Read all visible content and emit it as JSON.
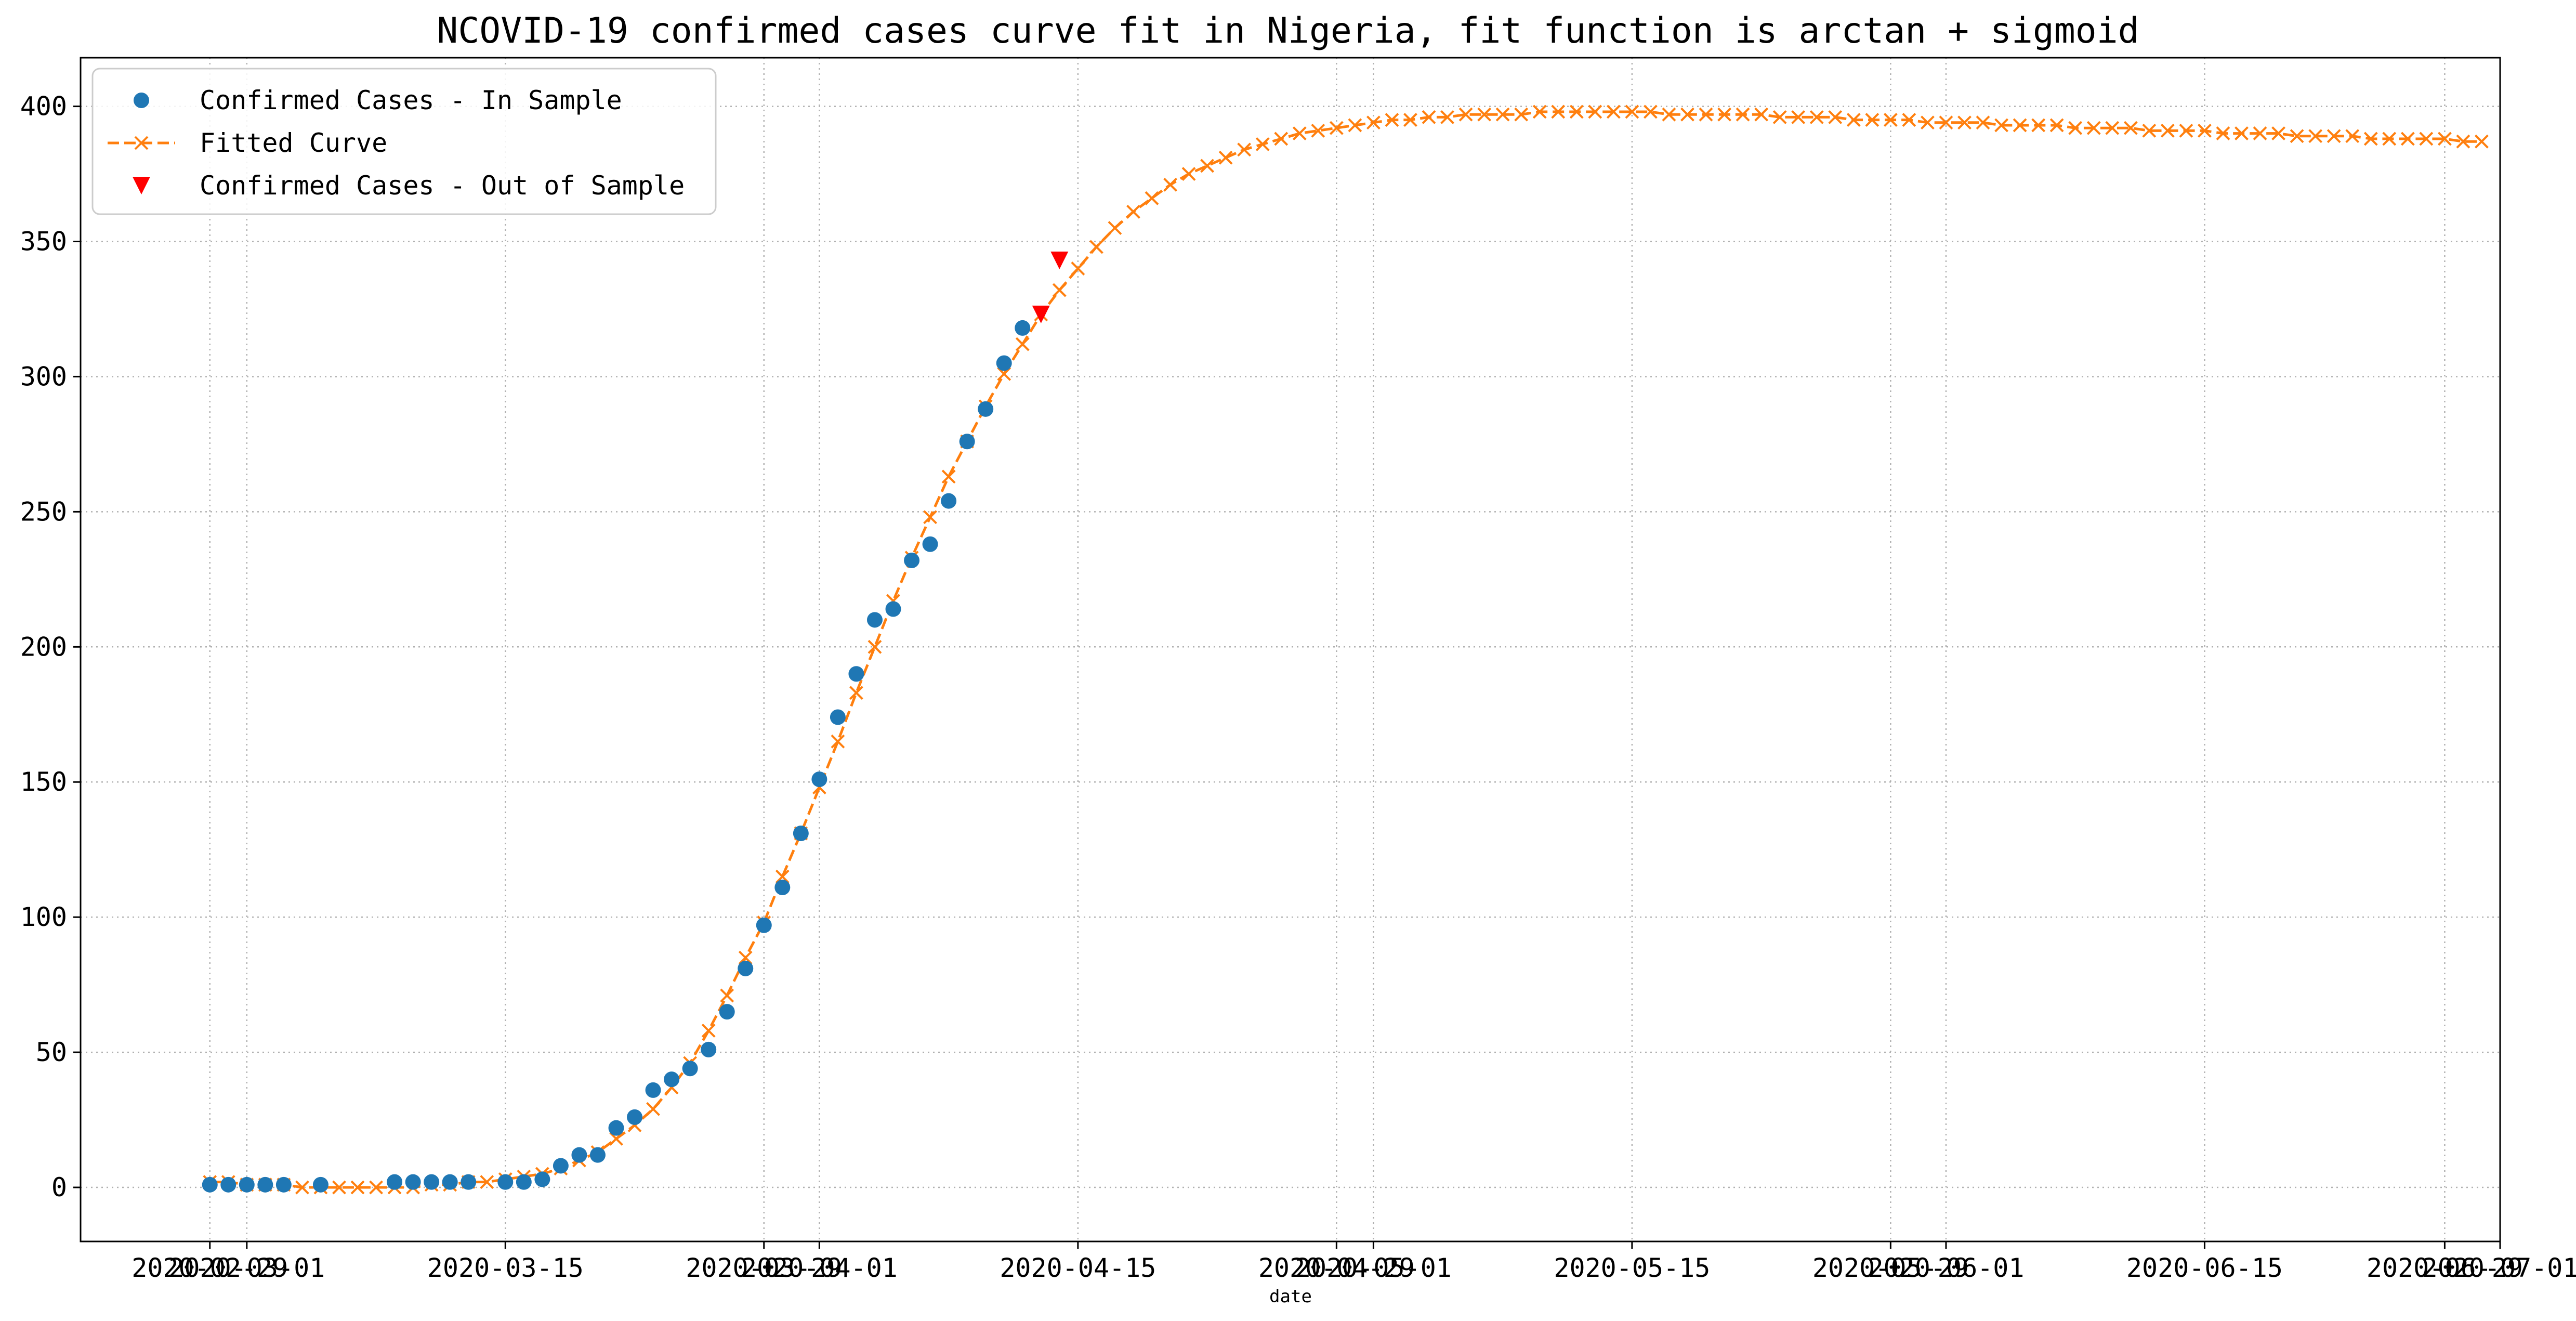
{
  "chart_data": {
    "type": "line",
    "title": "NCOVID-19 confirmed cases curve fit in Nigeria, fit function is arctan + sigmoid",
    "xlabel": "date",
    "ylabel": "",
    "ylim": [
      -20,
      418
    ],
    "grid": true,
    "legend_position": "top-left",
    "y_ticks": [
      0,
      50,
      100,
      150,
      200,
      250,
      300,
      350,
      400
    ],
    "y_tick_labels": [
      "0",
      "50",
      "100",
      "150",
      "200",
      "250",
      "300",
      "350",
      "400"
    ],
    "x_range": [
      "2020-02-21",
      "2020-07-01"
    ],
    "x_ticks": [
      {
        "date": "2020-02-28",
        "label": "2020-02-29"
      },
      {
        "date": "2020-03-01",
        "label": "2020-03-01"
      },
      {
        "date": "2020-03-15",
        "label": "2020-03-15"
      },
      {
        "date": "2020-03-29",
        "label": "2020-03-29"
      },
      {
        "date": "2020-04-01",
        "label": "2020-04-01"
      },
      {
        "date": "2020-04-15",
        "label": "2020-04-15"
      },
      {
        "date": "2020-04-29",
        "label": "2020-04-29"
      },
      {
        "date": "2020-05-01",
        "label": "2020-05-01"
      },
      {
        "date": "2020-05-15",
        "label": "2020-05-15"
      },
      {
        "date": "2020-05-29",
        "label": "2020-05-29"
      },
      {
        "date": "2020-06-01",
        "label": "2020-06-01"
      },
      {
        "date": "2020-06-15",
        "label": "2020-06-15"
      },
      {
        "date": "2020-06-28",
        "label": "2020-06-29"
      },
      {
        "date": "2020-07-01",
        "label": "2020-07-01"
      }
    ],
    "series": [
      {
        "name": "Confirmed Cases - In Sample",
        "marker": "circle",
        "color": "#1f77b4",
        "points": [
          [
            "2020-02-28",
            1
          ],
          [
            "2020-02-29",
            1
          ],
          [
            "2020-03-01",
            1
          ],
          [
            "2020-03-02",
            1
          ],
          [
            "2020-03-03",
            1
          ],
          [
            "2020-03-05",
            1
          ],
          [
            "2020-03-09",
            2
          ],
          [
            "2020-03-10",
            2
          ],
          [
            "2020-03-11",
            2
          ],
          [
            "2020-03-12",
            2
          ],
          [
            "2020-03-13",
            2
          ],
          [
            "2020-03-15",
            2
          ],
          [
            "2020-03-16",
            2
          ],
          [
            "2020-03-17",
            3
          ],
          [
            "2020-03-18",
            8
          ],
          [
            "2020-03-19",
            12
          ],
          [
            "2020-03-20",
            12
          ],
          [
            "2020-03-21",
            22
          ],
          [
            "2020-03-22",
            26
          ],
          [
            "2020-03-23",
            36
          ],
          [
            "2020-03-24",
            40
          ],
          [
            "2020-03-25",
            44
          ],
          [
            "2020-03-26",
            51
          ],
          [
            "2020-03-27",
            65
          ],
          [
            "2020-03-28",
            81
          ],
          [
            "2020-03-29",
            97
          ],
          [
            "2020-03-30",
            111
          ],
          [
            "2020-03-31",
            131
          ],
          [
            "2020-04-01",
            151
          ],
          [
            "2020-04-02",
            174
          ],
          [
            "2020-04-03",
            190
          ],
          [
            "2020-04-04",
            210
          ],
          [
            "2020-04-05",
            214
          ],
          [
            "2020-04-06",
            232
          ],
          [
            "2020-04-07",
            238
          ],
          [
            "2020-04-08",
            254
          ],
          [
            "2020-04-09",
            276
          ],
          [
            "2020-04-10",
            288
          ],
          [
            "2020-04-11",
            305
          ],
          [
            "2020-04-12",
            318
          ]
        ]
      },
      {
        "name": "Fitted Curve",
        "marker": "x",
        "line": "dashed",
        "color": "#ff7f0e",
        "start_date": "2020-02-28",
        "values": [
          2,
          2,
          1,
          1,
          1,
          0,
          0,
          0,
          0,
          0,
          0,
          0,
          1,
          1,
          2,
          2,
          3,
          4,
          5,
          7,
          10,
          13,
          18,
          23,
          29,
          37,
          46,
          58,
          71,
          85,
          98,
          115,
          131,
          148,
          165,
          183,
          200,
          217,
          233,
          248,
          263,
          276,
          289,
          301,
          312,
          323,
          332,
          340,
          348,
          355,
          361,
          366,
          371,
          375,
          378,
          381,
          384,
          386,
          388,
          390,
          391,
          392,
          393,
          394,
          395,
          395,
          396,
          396,
          397,
          397,
          397,
          397,
          398,
          398,
          398,
          398,
          398,
          398,
          398,
          397,
          397,
          397,
          397,
          397,
          397,
          396,
          396,
          396,
          396,
          395,
          395,
          395,
          395,
          394,
          394,
          394,
          394,
          393,
          393,
          393,
          393,
          392,
          392,
          392,
          392,
          391,
          391,
          391,
          391,
          390,
          390,
          390,
          390,
          389,
          389,
          389,
          389,
          388,
          388,
          388,
          388,
          388,
          387,
          387
        ]
      },
      {
        "name": "Confirmed Cases - Out of Sample",
        "marker": "triangle-down",
        "color": "#ff0000",
        "points": [
          [
            "2020-04-13",
            323
          ],
          [
            "2020-04-14",
            343
          ]
        ]
      }
    ]
  }
}
